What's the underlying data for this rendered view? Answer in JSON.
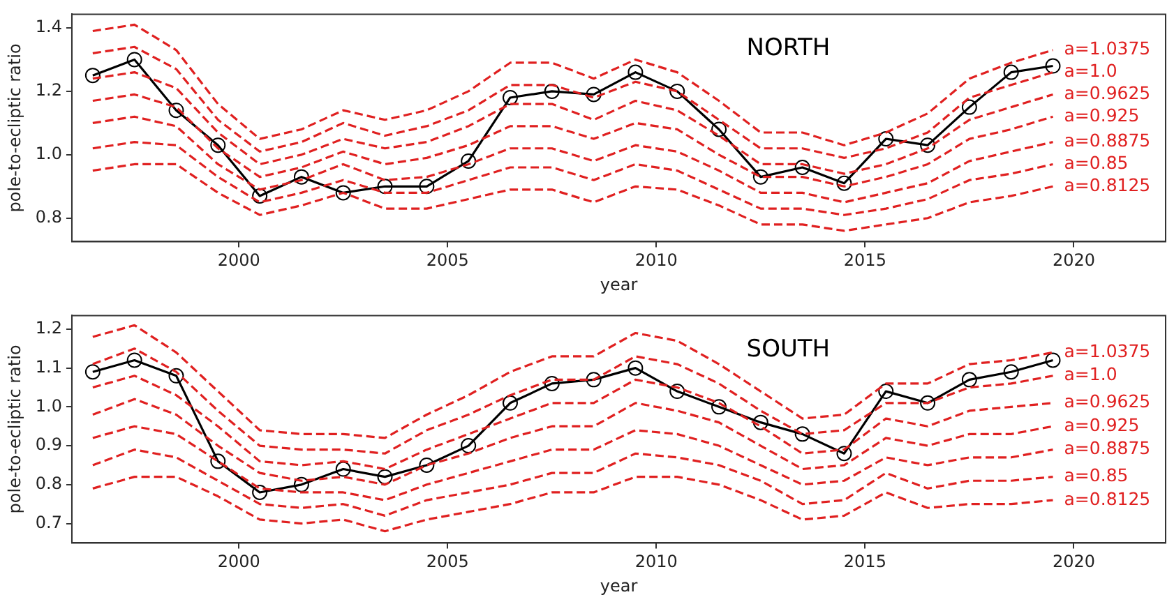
{
  "chart_data": [
    {
      "type": "line",
      "title": "NORTH",
      "xlabel": "year",
      "ylabel": "pole-to-ecliptic ratio",
      "legend": false,
      "grid": false,
      "x": [
        1996.5,
        1997.5,
        1998.5,
        1999.5,
        2000.5,
        2001.5,
        2002.5,
        2003.5,
        2004.5,
        2005.5,
        2006.5,
        2007.5,
        2008.5,
        2009.5,
        2010.5,
        2011.5,
        2012.5,
        2013.5,
        2014.5,
        2015.5,
        2016.5,
        2017.5,
        2018.5,
        2019.5
      ],
      "xlim": [
        1996,
        2022.2
      ],
      "xticks": [
        2000,
        2005,
        2010,
        2015,
        2020
      ],
      "ylim": [
        0.726,
        1.443
      ],
      "yticks": [
        0.8,
        {
          "value": 1.0,
          "label": "1.0"
        },
        1.2,
        1.4
      ],
      "series": [
        {
          "name": "a=1.0375",
          "color": "#e02020",
          "line_style": "dashed",
          "marker": "none",
          "values": [
            1.39,
            1.41,
            1.33,
            1.16,
            1.05,
            1.08,
            1.14,
            1.11,
            1.14,
            1.2,
            1.29,
            1.29,
            1.24,
            1.3,
            1.26,
            1.17,
            1.07,
            1.07,
            1.03,
            1.07,
            1.13,
            1.24,
            1.29,
            1.33
          ]
        },
        {
          "name": "a=1.0",
          "color": "#e02020",
          "line_style": "dashed",
          "marker": "none",
          "values": [
            1.32,
            1.34,
            1.27,
            1.11,
            1.01,
            1.04,
            1.1,
            1.06,
            1.09,
            1.14,
            1.22,
            1.22,
            1.18,
            1.23,
            1.2,
            1.11,
            1.02,
            1.02,
            0.99,
            1.02,
            1.07,
            1.18,
            1.22,
            1.26
          ]
        },
        {
          "name": "a=0.9625",
          "color": "#e02020",
          "line_style": "dashed",
          "marker": "none",
          "values": [
            1.24,
            1.26,
            1.21,
            1.07,
            0.97,
            1.0,
            1.05,
            1.02,
            1.04,
            1.09,
            1.16,
            1.16,
            1.11,
            1.17,
            1.14,
            1.06,
            0.97,
            0.97,
            0.94,
            0.97,
            1.02,
            1.11,
            1.15,
            1.19
          ]
        },
        {
          "name": "a=0.925",
          "color": "#e02020",
          "line_style": "dashed",
          "marker": "none",
          "values": [
            1.17,
            1.19,
            1.15,
            1.02,
            0.93,
            0.96,
            1.01,
            0.97,
            0.99,
            1.03,
            1.09,
            1.09,
            1.05,
            1.1,
            1.08,
            1.0,
            0.93,
            0.93,
            0.9,
            0.93,
            0.97,
            1.05,
            1.08,
            1.12
          ]
        },
        {
          "name": "a=0.8875",
          "color": "#e02020",
          "line_style": "dashed",
          "marker": "none",
          "values": [
            1.1,
            1.12,
            1.09,
            0.97,
            0.89,
            0.92,
            0.97,
            0.92,
            0.93,
            0.97,
            1.02,
            1.02,
            0.98,
            1.03,
            1.01,
            0.95,
            0.88,
            0.88,
            0.85,
            0.88,
            0.91,
            0.98,
            1.01,
            1.04
          ]
        },
        {
          "name": "a=0.85",
          "color": "#e02020",
          "line_style": "dashed",
          "marker": "none",
          "values": [
            1.02,
            1.04,
            1.03,
            0.93,
            0.85,
            0.88,
            0.92,
            0.88,
            0.88,
            0.92,
            0.96,
            0.96,
            0.92,
            0.97,
            0.95,
            0.89,
            0.83,
            0.83,
            0.81,
            0.83,
            0.86,
            0.92,
            0.94,
            0.97
          ]
        },
        {
          "name": "a=0.8125",
          "color": "#e02020",
          "line_style": "dashed",
          "marker": "none",
          "values": [
            0.95,
            0.97,
            0.97,
            0.88,
            0.81,
            0.84,
            0.88,
            0.83,
            0.83,
            0.86,
            0.89,
            0.89,
            0.85,
            0.9,
            0.89,
            0.84,
            0.78,
            0.78,
            0.76,
            0.78,
            0.8,
            0.85,
            0.87,
            0.9
          ]
        },
        {
          "color": "#000000",
          "line_style": "solid",
          "marker": "circle",
          "values": [
            1.25,
            1.3,
            1.14,
            1.03,
            0.87,
            0.93,
            0.88,
            0.9,
            0.9,
            0.98,
            1.18,
            1.2,
            1.19,
            1.26,
            1.2,
            1.08,
            0.93,
            0.96,
            0.91,
            1.05,
            1.03,
            1.15,
            1.26,
            1.28
          ]
        }
      ]
    },
    {
      "type": "line",
      "title": "SOUTH",
      "xlabel": "year",
      "ylabel": "pole-to-ecliptic ratio",
      "legend": false,
      "grid": false,
      "x": [
        1996.5,
        1997.5,
        1998.5,
        1999.5,
        2000.5,
        2001.5,
        2002.5,
        2003.5,
        2004.5,
        2005.5,
        2006.5,
        2007.5,
        2008.5,
        2009.5,
        2010.5,
        2011.5,
        2012.5,
        2013.5,
        2014.5,
        2015.5,
        2016.5,
        2017.5,
        2018.5,
        2019.5
      ],
      "xlim": [
        1996,
        2022.2
      ],
      "xticks": [
        2000,
        2005,
        2010,
        2015,
        2020
      ],
      "ylim": [
        0.65,
        1.235
      ],
      "yticks": [
        0.7,
        0.8,
        0.9,
        {
          "value": 1.0,
          "label": "1.0"
        },
        1.1,
        1.2
      ],
      "series": [
        {
          "name": "a=1.0375",
          "color": "#e02020",
          "line_style": "dashed",
          "marker": "none",
          "values": [
            1.18,
            1.21,
            1.14,
            1.04,
            0.94,
            0.93,
            0.93,
            0.92,
            0.98,
            1.03,
            1.09,
            1.13,
            1.13,
            1.19,
            1.17,
            1.11,
            1.04,
            0.97,
            0.98,
            1.06,
            1.06,
            1.11,
            1.12,
            1.14
          ]
        },
        {
          "name": "a=1.0",
          "color": "#e02020",
          "line_style": "dashed",
          "marker": "none",
          "values": [
            1.11,
            1.15,
            1.09,
            0.99,
            0.9,
            0.89,
            0.89,
            0.88,
            0.94,
            0.98,
            1.03,
            1.07,
            1.07,
            1.13,
            1.11,
            1.06,
            0.99,
            0.93,
            0.94,
            1.01,
            1.01,
            1.05,
            1.06,
            1.08
          ]
        },
        {
          "name": "a=0.9625",
          "color": "#e02020",
          "line_style": "dashed",
          "marker": "none",
          "values": [
            1.05,
            1.08,
            1.03,
            0.95,
            0.86,
            0.85,
            0.86,
            0.84,
            0.89,
            0.93,
            0.97,
            1.01,
            1.01,
            1.07,
            1.05,
            1.01,
            0.95,
            0.88,
            0.89,
            0.97,
            0.95,
            0.99,
            1.0,
            1.01
          ]
        },
        {
          "name": "a=0.925",
          "color": "#e02020",
          "line_style": "dashed",
          "marker": "none",
          "values": [
            0.98,
            1.02,
            0.98,
            0.9,
            0.83,
            0.81,
            0.82,
            0.8,
            0.85,
            0.88,
            0.92,
            0.95,
            0.95,
            1.01,
            0.99,
            0.96,
            0.9,
            0.84,
            0.85,
            0.92,
            0.9,
            0.93,
            0.93,
            0.95
          ]
        },
        {
          "name": "a=0.8875",
          "color": "#e02020",
          "line_style": "dashed",
          "marker": "none",
          "values": [
            0.92,
            0.95,
            0.93,
            0.86,
            0.79,
            0.78,
            0.78,
            0.76,
            0.8,
            0.83,
            0.86,
            0.89,
            0.89,
            0.94,
            0.93,
            0.9,
            0.85,
            0.8,
            0.81,
            0.87,
            0.85,
            0.87,
            0.87,
            0.89
          ]
        },
        {
          "name": "a=0.85",
          "color": "#e02020",
          "line_style": "dashed",
          "marker": "none",
          "values": [
            0.85,
            0.89,
            0.87,
            0.81,
            0.75,
            0.74,
            0.75,
            0.72,
            0.76,
            0.78,
            0.8,
            0.83,
            0.83,
            0.88,
            0.87,
            0.85,
            0.81,
            0.75,
            0.76,
            0.83,
            0.79,
            0.81,
            0.81,
            0.82
          ]
        },
        {
          "name": "a=0.8125",
          "color": "#e02020",
          "line_style": "dashed",
          "marker": "none",
          "values": [
            0.79,
            0.82,
            0.82,
            0.77,
            0.71,
            0.7,
            0.71,
            0.68,
            0.71,
            0.73,
            0.75,
            0.78,
            0.78,
            0.82,
            0.82,
            0.8,
            0.76,
            0.71,
            0.72,
            0.78,
            0.74,
            0.75,
            0.75,
            0.76
          ]
        },
        {
          "color": "#000000",
          "line_style": "solid",
          "marker": "circle",
          "values": [
            1.09,
            1.12,
            1.08,
            0.86,
            0.78,
            0.8,
            0.84,
            0.82,
            0.85,
            0.9,
            1.01,
            1.06,
            1.07,
            1.1,
            1.04,
            1.0,
            0.96,
            0.93,
            0.88,
            1.04,
            1.01,
            1.07,
            1.09,
            1.12
          ]
        }
      ]
    }
  ]
}
